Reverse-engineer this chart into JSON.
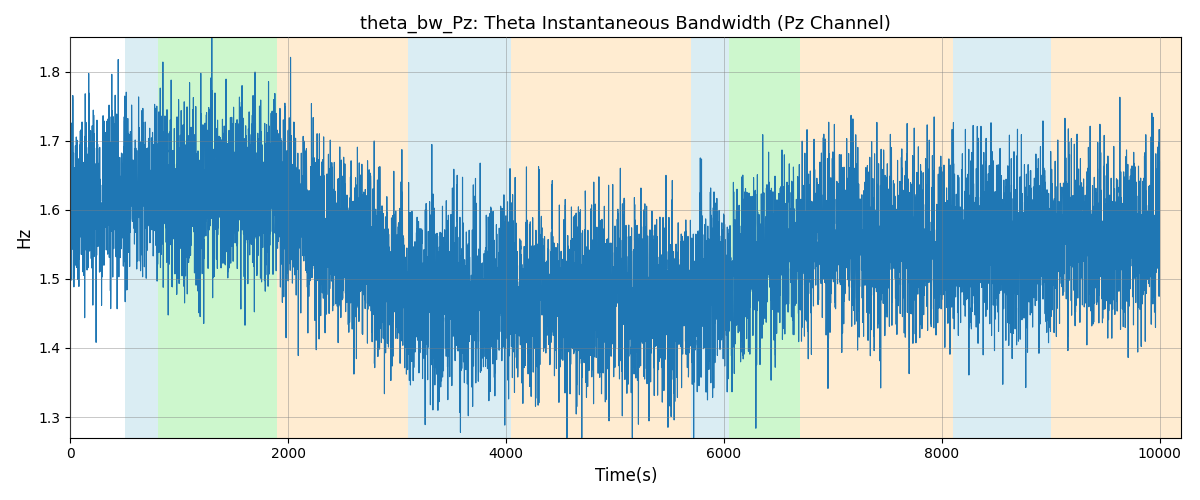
{
  "title": "theta_bw_Pz: Theta Instantaneous Bandwidth (Pz Channel)",
  "xlabel": "Time(s)",
  "ylabel": "Hz",
  "xlim": [
    0,
    10200
  ],
  "ylim": [
    1.27,
    1.85
  ],
  "line_color": "#1f77b4",
  "line_width": 0.8,
  "background_color": "#ffffff",
  "grid": true,
  "figsize": [
    12,
    5
  ],
  "dpi": 100,
  "xticks": [
    0,
    2000,
    4000,
    6000,
    8000,
    10000
  ],
  "yticks": [
    1.3,
    1.4,
    1.5,
    1.6,
    1.7,
    1.8
  ],
  "colored_bands": [
    {
      "xmin": 500,
      "xmax": 800,
      "color": "#add8e6",
      "alpha": 0.45
    },
    {
      "xmin": 800,
      "xmax": 1900,
      "color": "#90ee90",
      "alpha": 0.45
    },
    {
      "xmin": 1900,
      "xmax": 3100,
      "color": "#ffd59a",
      "alpha": 0.45
    },
    {
      "xmin": 3100,
      "xmax": 3600,
      "color": "#add8e6",
      "alpha": 0.45
    },
    {
      "xmin": 3600,
      "xmax": 4050,
      "color": "#add8e6",
      "alpha": 0.45
    },
    {
      "xmin": 4050,
      "xmax": 5700,
      "color": "#ffd59a",
      "alpha": 0.45
    },
    {
      "xmin": 5700,
      "xmax": 6050,
      "color": "#add8e6",
      "alpha": 0.45
    },
    {
      "xmin": 6050,
      "xmax": 6700,
      "color": "#90ee90",
      "alpha": 0.45
    },
    {
      "xmin": 6700,
      "xmax": 7450,
      "color": "#ffd59a",
      "alpha": 0.45
    },
    {
      "xmin": 7450,
      "xmax": 8100,
      "color": "#ffd59a",
      "alpha": 0.45
    },
    {
      "xmin": 8100,
      "xmax": 9000,
      "color": "#add8e6",
      "alpha": 0.45
    },
    {
      "xmin": 9000,
      "xmax": 10200,
      "color": "#ffd59a",
      "alpha": 0.45
    }
  ]
}
